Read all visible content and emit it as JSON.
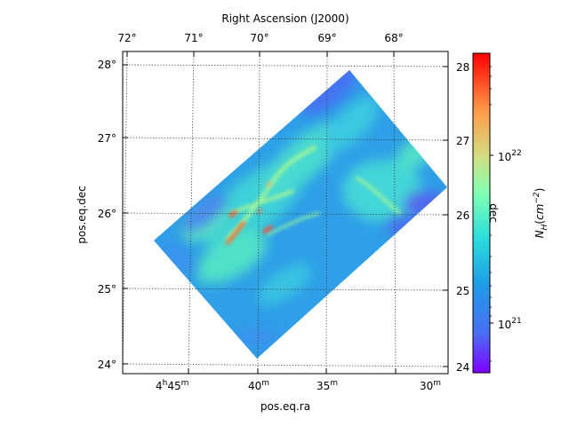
{
  "chart_data": {
    "type": "heatmap",
    "projection": "sky map (celestial coordinates), rotated rectangular survey footprint",
    "title": "Right Ascension (J2000)",
    "xlabel": "pos.eq.ra",
    "ylabel": "pos.eq.dec",
    "right_axis_label": "dec",
    "top_ticks_deg": [
      "72°",
      "71°",
      "70°",
      "69°",
      "68°"
    ],
    "bottom_ticks_hms": [
      "4h45m",
      "40m",
      "35m",
      "30m"
    ],
    "left_ticks_deg": [
      "28°",
      "27°",
      "26°",
      "25°",
      "24°"
    ],
    "right_ticks": [
      "28",
      "27",
      "26",
      "25",
      "24"
    ],
    "ra_range_deg": [
      67.2,
      72.1
    ],
    "dec_range_deg": [
      23.9,
      28.1
    ],
    "grid": "dotted",
    "colormap": "rainbow",
    "colorbar": {
      "label": "N_H (cm^-2)",
      "label_parts": {
        "main": "N",
        "sub": "H",
        "open": "(",
        "unit": "cm",
        "exp": "−2",
        "close": ")"
      },
      "scale": "log",
      "range": [
        4e+20,
        5e+22
      ],
      "ticks": [
        {
          "value": 1e+22,
          "base": "10",
          "exp": "22"
        },
        {
          "value": 1e+21,
          "base": "10",
          "exp": "21"
        }
      ]
    },
    "map_features": [
      {
        "description": "diffuse background column density",
        "approx_NH": 2e+21
      },
      {
        "description": "filamentary ridges",
        "approx_NH": 6e+21
      },
      {
        "description": "densest cores near RA 70.3°, Dec 25.8–26.0°",
        "approx_NH": 3e+22
      }
    ]
  }
}
